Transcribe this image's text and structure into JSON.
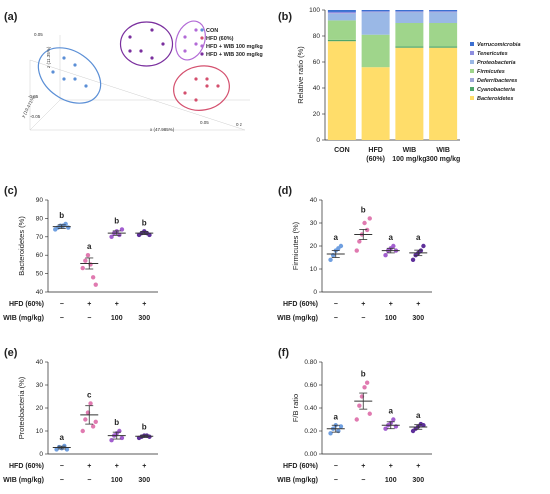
{
  "colors": {
    "con": "#6f9fe0",
    "hfd": "#e07ab0",
    "wib100": "#a25ecf",
    "wib300": "#5e2f9a",
    "pca_con": "#5b8fd6",
    "pca_hfd": "#d4506e",
    "pca_wib100": "#b26ad6",
    "pca_wib300": "#7a2f9e",
    "Verrucomicrobia": "#3b6fd1",
    "Tenericutes": "#8e8ee0",
    "Proteobacteria": "#9ab8e6",
    "Firmicutes": "#9fd58b",
    "Deferribacteres": "#9fa8d8",
    "Cyanobacteria": "#4fa66a",
    "Bacteroidetes": "#ffdd6a"
  },
  "panels": {
    "a": {
      "label": "(a)"
    },
    "b": {
      "label": "(b)"
    },
    "c": {
      "label": "(c)"
    },
    "d": {
      "label": "(d)"
    },
    "e": {
      "label": "(e)"
    },
    "f": {
      "label": "(f)"
    }
  },
  "pca_legend": [
    "CON",
    "HFD (60%)",
    "HFD + WIB 100 mg/kg",
    "HFD + WIB 300 mg/kg"
  ],
  "pca_axes": {
    "x": "x (47.985%)",
    "y": "y (19.471%)",
    "z": "z (11.35%)",
    "t1": "0.05",
    "t2": "-0.05",
    "t3": "-0.05",
    "t4": "0.05",
    "t5": "0 z"
  },
  "scatter_xlabels": {
    "hfd_row": [
      "HFD (60%)",
      "−",
      "+",
      "+",
      "+"
    ],
    "wib_row": [
      "WIB (mg/kg)",
      "−",
      "−",
      "100",
      "300"
    ]
  },
  "chart_data": [
    {
      "type": "scatter",
      "title": "",
      "xlabel": "",
      "ylabel": "",
      "series": [
        {
          "name": "CON",
          "points": [
            [
              -0.06,
              0.01
            ],
            [
              -0.05,
              -0.02
            ],
            [
              -0.07,
              -0.01
            ],
            [
              -0.04,
              -0.03
            ],
            [
              -0.05,
              0.0
            ],
            [
              -0.06,
              -0.02
            ]
          ]
        },
        {
          "name": "HFD (60%)",
          "points": [
            [
              0.06,
              -0.02
            ],
            [
              0.07,
              -0.03
            ],
            [
              0.05,
              -0.04
            ],
            [
              0.06,
              -0.05
            ],
            [
              0.07,
              -0.02
            ],
            [
              0.08,
              -0.03
            ]
          ]
        },
        {
          "name": "HFD + WIB 100 mg/kg",
          "points": [
            [
              0.05,
              0.04
            ],
            [
              0.06,
              0.03
            ],
            [
              0.05,
              0.02
            ],
            [
              0.06,
              0.05
            ]
          ]
        },
        {
          "name": "HFD + WIB 300 mg/kg",
          "points": [
            [
              0.0,
              0.04
            ],
            [
              0.02,
              0.05
            ],
            [
              0.01,
              0.02
            ],
            [
              0.03,
              0.03
            ],
            [
              0.02,
              0.01
            ],
            [
              0.0,
              0.02
            ]
          ]
        }
      ]
    },
    {
      "type": "bar",
      "stacked": true,
      "categories": [
        "CON",
        "HFD\n(60%)",
        "WIB\n100 mg/kg",
        "WIB\n300 mg/kg"
      ],
      "ylabel": "Relative ratio (%)",
      "ylim": [
        0,
        100
      ],
      "yticks": [
        0,
        20,
        40,
        60,
        80,
        100
      ],
      "legend_position": "right",
      "series": [
        {
          "name": "Bacteroidetes",
          "values": [
            76,
            56,
            71,
            71
          ]
        },
        {
          "name": "Cyanobacteria",
          "values": [
            1,
            0,
            1,
            1
          ]
        },
        {
          "name": "Firmicutes",
          "values": [
            15,
            25,
            18,
            18
          ]
        },
        {
          "name": "Proteobacteria",
          "values": [
            5,
            17,
            8,
            8
          ]
        },
        {
          "name": "Deferribacteres",
          "values": [
            0.5,
            0.5,
            0.5,
            0.5
          ]
        },
        {
          "name": "Tenericutes",
          "values": [
            1,
            0.5,
            0.5,
            0.5
          ]
        },
        {
          "name": "Verrucomicrobia",
          "values": [
            1.5,
            1,
            1,
            1
          ]
        }
      ],
      "legend_order": [
        "Verrucomicrobia",
        "Tenericutes",
        "Proteobacteria",
        "Firmicutes",
        "Deferribacteres",
        "Cyanobacteria",
        "Bacteroidetes"
      ]
    },
    {
      "type": "scatter",
      "ylabel": "Bacteroidetes (%)",
      "ylim": [
        40,
        90
      ],
      "yticks": [
        40,
        50,
        60,
        70,
        80,
        90
      ],
      "groups": [
        {
          "values": [
            74,
            75,
            76,
            76,
            77,
            75
          ],
          "mean": 75.5,
          "sem": 1.0,
          "letter": "b"
        },
        {
          "values": [
            53,
            57,
            60,
            55,
            48,
            44
          ],
          "mean": 55.5,
          "sem": 3.0,
          "letter": "a"
        },
        {
          "values": [
            70,
            72,
            73,
            71,
            74
          ],
          "mean": 72,
          "sem": 1.2,
          "letter": "b"
        },
        {
          "values": [
            71,
            72,
            73,
            72,
            71
          ],
          "mean": 72,
          "sem": 0.8,
          "letter": "b"
        }
      ]
    },
    {
      "type": "scatter",
      "ylabel": "Firmicutes (%)",
      "ylim": [
        0,
        40
      ],
      "yticks": [
        0,
        10,
        20,
        30,
        40
      ],
      "groups": [
        {
          "values": [
            14,
            16,
            18,
            19,
            20
          ],
          "mean": 16.5,
          "sem": 1.5,
          "letter": "a"
        },
        {
          "values": [
            18,
            22,
            25,
            30,
            27,
            32
          ],
          "mean": 25,
          "sem": 2.2,
          "letter": "b"
        },
        {
          "values": [
            16,
            18,
            19,
            20,
            18
          ],
          "mean": 18,
          "sem": 1.0,
          "letter": "a"
        },
        {
          "values": [
            14,
            16,
            17,
            18,
            20
          ],
          "mean": 17,
          "sem": 1.2,
          "letter": "a"
        }
      ]
    },
    {
      "type": "scatter",
      "ylabel": "Proteobacteria (%)",
      "ylim": [
        0,
        40
      ],
      "yticks": [
        0,
        10,
        20,
        30,
        40
      ],
      "groups": [
        {
          "values": [
            2,
            3,
            2.5,
            3.5,
            2
          ],
          "mean": 2.8,
          "sem": 0.6,
          "letter": "a"
        },
        {
          "values": [
            10,
            15,
            18,
            22,
            12,
            14
          ],
          "mean": 17,
          "sem": 4.0,
          "letter": "c"
        },
        {
          "values": [
            6,
            8,
            9,
            10,
            7
          ],
          "mean": 8,
          "sem": 1.5,
          "letter": "b"
        },
        {
          "values": [
            7,
            7.5,
            8,
            8,
            7.5
          ],
          "mean": 7.7,
          "sem": 0.5,
          "letter": "b"
        }
      ]
    },
    {
      "type": "scatter",
      "ylabel": "F/B ratio",
      "ylim": [
        0,
        0.8
      ],
      "yticks": [
        0,
        0.2,
        0.4,
        0.6,
        0.8
      ],
      "ytick_labels": [
        "0.00",
        "0.20",
        "0.40",
        "0.60",
        "0.80"
      ],
      "groups": [
        {
          "values": [
            0.18,
            0.22,
            0.25,
            0.2,
            0.24
          ],
          "mean": 0.22,
          "sem": 0.03,
          "letter": "a"
        },
        {
          "values": [
            0.3,
            0.42,
            0.5,
            0.58,
            0.62,
            0.35
          ],
          "mean": 0.46,
          "sem": 0.07,
          "letter": "b"
        },
        {
          "values": [
            0.22,
            0.25,
            0.27,
            0.3,
            0.24
          ],
          "mean": 0.25,
          "sem": 0.03,
          "letter": "a"
        },
        {
          "values": [
            0.2,
            0.22,
            0.24,
            0.26,
            0.25
          ],
          "mean": 0.235,
          "sem": 0.02,
          "letter": "a"
        }
      ]
    }
  ]
}
